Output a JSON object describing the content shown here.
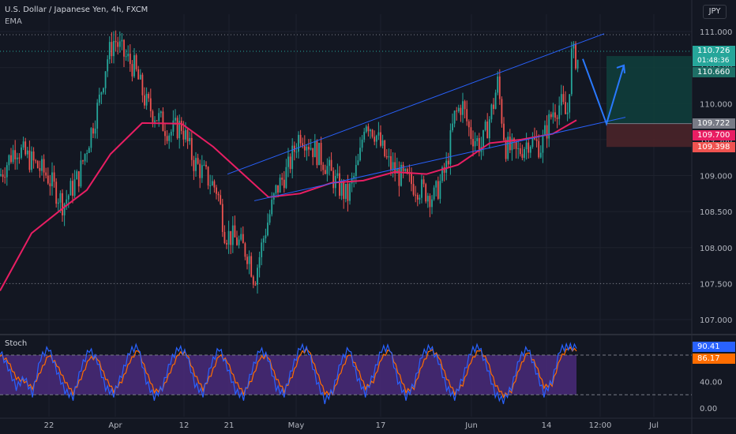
{
  "header": {
    "symbol_line": "U.S. Dollar / Japanese Yen, 4h, FXCM",
    "indicator": "EMA",
    "currency": "JPY",
    "stoch_label": "Stoch"
  },
  "colors": {
    "background": "#131722",
    "up": "#26a69a",
    "down": "#ef5350",
    "ema": "#e91e63",
    "channel": "#2962ff",
    "profit_zone": "#0f3f3c",
    "loss_zone": "#4a2329",
    "stoch_band": "#4a2a7a",
    "stoch_k": "#2962ff",
    "stoch_d": "#ff6d00"
  },
  "price_tags": {
    "current": "110.726",
    "countdown": "01:48:36",
    "target": "110.660",
    "entry": "109.722",
    "ema_value": "109.700",
    "stop": "109.398",
    "stoch_k": "90.41",
    "stoch_d": "86.17"
  },
  "chart_data": [
    {
      "type": "candlestick",
      "title": "U.S. Dollar / Japanese Yen, 4h, FXCM",
      "x_tick_labels": [
        "22",
        "Apr",
        "12",
        "21",
        "May",
        "17",
        "Jun",
        "14",
        "12:00",
        "Jul"
      ],
      "y_tick_labels": [
        "111.000",
        "110.500",
        "110.000",
        "109.500",
        "109.000",
        "108.500",
        "108.000",
        "107.500",
        "107.000"
      ],
      "ylim": [
        106.8,
        111.2
      ],
      "key_levels": {
        "high_line": 110.726,
        "low_line": 107.5
      },
      "series": [
        {
          "name": "EMA",
          "points": [
            [
              0,
              107.4
            ],
            [
              40,
              108.2
            ],
            [
              80,
              108.55
            ],
            [
              110,
              108.8
            ],
            [
              140,
              109.3
            ],
            [
              180,
              109.73
            ],
            [
              230,
              109.72
            ],
            [
              270,
              109.4
            ],
            [
              300,
              109.1
            ],
            [
              340,
              108.7
            ],
            [
              380,
              108.75
            ],
            [
              420,
              108.9
            ],
            [
              460,
              108.93
            ],
            [
              500,
              109.05
            ],
            [
              540,
              109.02
            ],
            [
              580,
              109.15
            ],
            [
              620,
              109.45
            ],
            [
              660,
              109.5
            ],
            [
              700,
              109.58
            ],
            [
              730,
              109.77
            ]
          ]
        },
        {
          "name": "Channel upper",
          "points": [
            [
              288,
              109.02
            ],
            [
              765,
              110.97
            ]
          ]
        },
        {
          "name": "Channel lower",
          "points": [
            [
              322,
              108.65
            ],
            [
              792,
              109.81
            ]
          ]
        },
        {
          "name": "Projection",
          "points": [
            [
              738,
              110.62
            ],
            [
              768,
              109.72
            ],
            [
              790,
              110.53
            ]
          ]
        }
      ],
      "candles_ohlc_path": [
        [
          0,
          109.0
        ],
        [
          20,
          109.4
        ],
        [
          40,
          109.2
        ],
        [
          60,
          109.0
        ],
        [
          80,
          108.6
        ],
        [
          100,
          109.0
        ],
        [
          115,
          109.6
        ],
        [
          125,
          110.0
        ],
        [
          135,
          110.6
        ],
        [
          145,
          110.9
        ],
        [
          155,
          110.7
        ],
        [
          170,
          110.5
        ],
        [
          185,
          110.0
        ],
        [
          200,
          109.8
        ],
        [
          215,
          109.6
        ],
        [
          230,
          109.7
        ],
        [
          245,
          109.2
        ],
        [
          260,
          109.0
        ],
        [
          275,
          108.8
        ],
        [
          285,
          108.2
        ],
        [
          300,
          108.1
        ],
        [
          315,
          107.9
        ],
        [
          322,
          107.55
        ],
        [
          335,
          108.2
        ],
        [
          350,
          108.8
        ],
        [
          365,
          109.1
        ],
        [
          380,
          109.6
        ],
        [
          395,
          109.4
        ],
        [
          410,
          109.2
        ],
        [
          425,
          108.9
        ],
        [
          440,
          108.7
        ],
        [
          455,
          109.2
        ],
        [
          462,
          109.8
        ],
        [
          475,
          109.6
        ],
        [
          490,
          109.2
        ],
        [
          505,
          109.0
        ],
        [
          520,
          108.9
        ],
        [
          535,
          108.8
        ],
        [
          550,
          108.7
        ],
        [
          565,
          109.1
        ],
        [
          575,
          109.8
        ],
        [
          585,
          110.0
        ],
        [
          595,
          109.6
        ],
        [
          610,
          109.4
        ],
        [
          625,
          110.0
        ],
        [
          630,
          110.3
        ],
        [
          640,
          109.4
        ],
        [
          655,
          109.3
        ],
        [
          670,
          109.5
        ],
        [
          685,
          109.4
        ],
        [
          700,
          109.9
        ],
        [
          710,
          110.0
        ],
        [
          718,
          109.8
        ],
        [
          724,
          110.7
        ],
        [
          732,
          110.6
        ]
      ]
    },
    {
      "type": "line",
      "title": "Stoch",
      "y_tick_labels": [
        "40.00",
        "0.00"
      ],
      "ylim": [
        -5,
        110
      ],
      "band": [
        20,
        80
      ],
      "series": [
        {
          "name": "%K",
          "values": [
            85,
            60,
            30,
            45,
            20,
            75,
            90,
            55,
            25,
            15,
            60,
            88,
            70,
            30,
            20,
            50,
            85,
            92,
            40,
            15,
            30,
            70,
            90,
            80,
            35,
            20,
            65,
            90,
            60,
            25,
            15,
            55,
            88,
            75,
            30,
            20,
            60,
            92,
            85,
            40,
            10,
            25,
            70,
            90,
            45,
            20,
            50,
            88,
            90,
            40,
            15,
            35,
            80,
            92,
            70,
            30,
            15,
            45,
            85,
            92,
            60,
            20,
            10,
            30,
            75,
            90,
            55,
            20,
            40,
            88,
            92,
            90
          ]
        },
        {
          "name": "%D",
          "values": [
            80,
            70,
            45,
            40,
            30,
            55,
            80,
            65,
            40,
            22,
            45,
            75,
            75,
            45,
            25,
            40,
            70,
            88,
            55,
            25,
            28,
            55,
            82,
            82,
            50,
            28,
            50,
            80,
            70,
            40,
            22,
            42,
            75,
            78,
            45,
            25,
            48,
            82,
            88,
            55,
            22,
            22,
            55,
            82,
            60,
            30,
            40,
            75,
            88,
            55,
            25,
            30,
            65,
            88,
            78,
            45,
            22,
            35,
            70,
            88,
            72,
            35,
            18,
            25,
            60,
            85,
            65,
            32,
            35,
            75,
            90,
            86
          ]
        }
      ]
    }
  ]
}
